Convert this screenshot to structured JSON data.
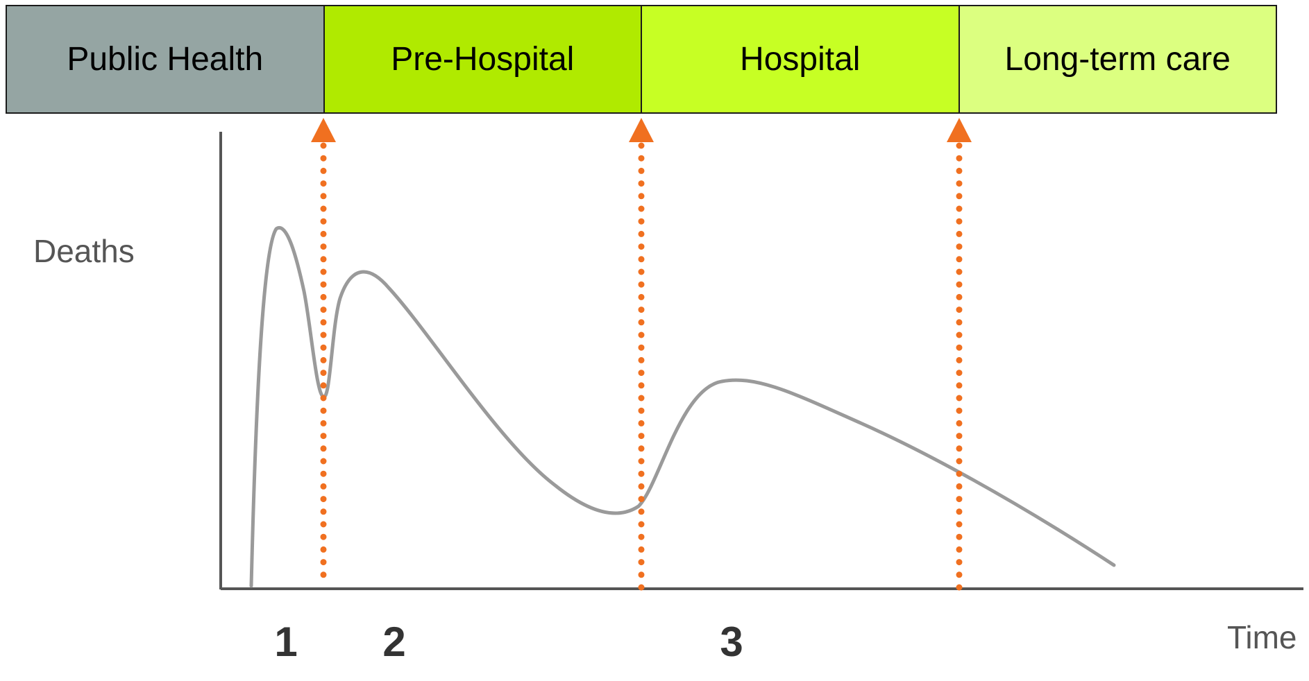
{
  "phases": [
    {
      "label": "Public Health",
      "color": "#95a5a3"
    },
    {
      "label": "Pre-Hospital",
      "color": "#b0ea00"
    },
    {
      "label": "Hospital",
      "color": "#c7ff24"
    },
    {
      "label": "Long-term care",
      "color": "#dcff80"
    }
  ],
  "axes": {
    "ylabel": "Deaths",
    "xlabel": "Time"
  },
  "stages": [
    "1",
    "2",
    "3"
  ],
  "colors": {
    "arrow": "#f07020",
    "curve": "#9a9a9a",
    "axis": "#555555"
  }
}
